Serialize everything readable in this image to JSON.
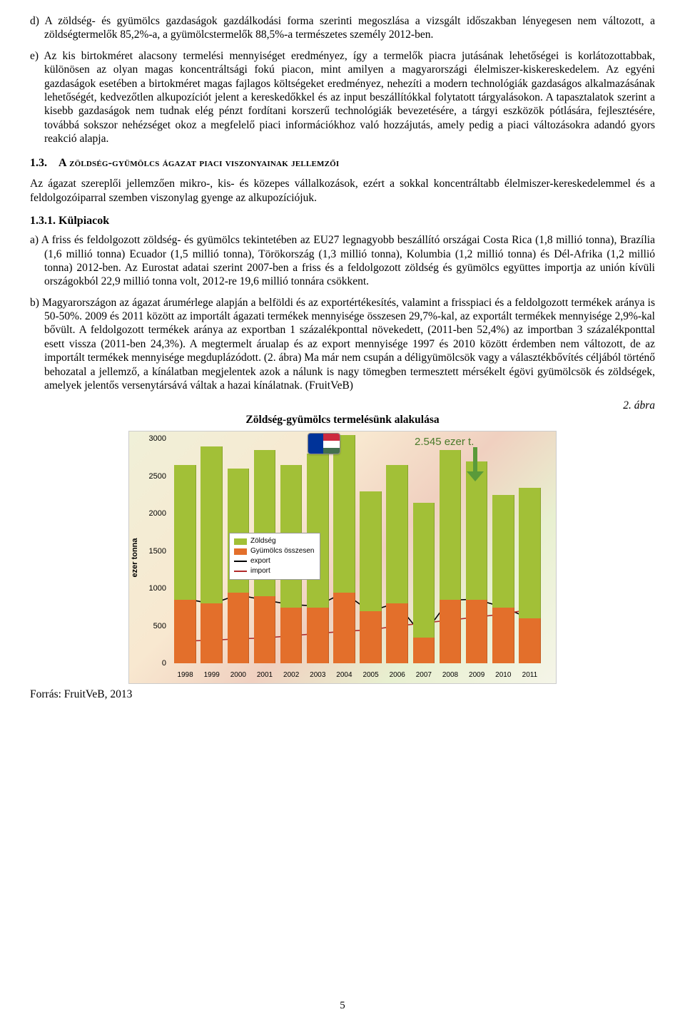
{
  "paragraphs": {
    "d": "d) A zöldség- és gyümölcs gazdaságok gazdálkodási forma szerinti megoszlása a vizsgált időszakban lényegesen nem változott, a zöldségtermelők 85,2%-a, a gyümölcstermelők 88,5%-a természetes személy 2012-ben.",
    "e": "e) Az kis birtokméret alacsony termelési mennyiséget eredményez, így a termelők piacra jutásának lehetőségei is korlátozottabbak, különösen az olyan magas koncentráltsági fokú piacon, mint amilyen a magyarországi élelmiszer-kiskereskedelem. Az egyéni gazdaságok esetében a birtokméret magas fajlagos költségeket eredményez, nehezíti a modern technológiák gazdaságos alkalmazásának lehetőségét, kedvezőtlen alkupozíciót jelent a kereskedőkkel és az input beszállítókkal folytatott tárgyalásokon. A tapasztalatok szerint a kisebb gazdaságok nem tudnak elég pénzt fordítani korszerű technológiák bevezetésére, a tárgyi eszközök pótlására, fejlesztésére, továbbá sokszor nehézséget okoz a megfelelő piaci információkhoz való hozzájutás, amely pedig a piaci változásokra adandó gyors reakció alapja.",
    "after_1_3": "Az ágazat szereplői jellemzően mikro-, kis- és közepes vállalkozások, ezért a sokkal koncentráltabb élelmiszer-kereskedelemmel és a feldolgozóiparral szemben viszonylag gyenge az alkupozíciójuk.",
    "a": "a) A friss és feldolgozott zöldség- és gyümölcs tekintetében az EU27 legnagyobb beszállító országai Costa Rica (1,8 millió tonna), Brazília (1,6 millió tonna) Ecuador (1,5 millió tonna), Törökország (1,3 millió tonna), Kolumbia (1,2 millió tonna) és Dél-Afrika (1,2 millió tonna) 2012-ben. Az Eurostat adatai szerint 2007-ben a friss és a feldolgozott zöldség és gyümölcs együttes importja az unión kívüli országokból 22,9 millió tonna volt, 2012-re 19,6 millió tonnára csökkent.",
    "b": "b) Magyarországon az ágazat árumérlege alapján a belföldi és az exportértékesítés, valamint a frisspiaci és a feldolgozott termékek aránya is 50-50%. 2009 és 2011 között az importált ágazati termékek mennyisége összesen 29,7%-kal, az exportált termékek mennyisége 2,9%-kal bővült. A feldolgozott termékek aránya az exportban 1 százalékponttal növekedett, (2011-ben 52,4%) az importban 3 százalékponttal esett vissza (2011-ben 24,3%). A megtermelt árualap és az export mennyisége 1997 és 2010 között érdemben nem változott, de az importált termékek mennyisége megduplázódott. (2. ábra) Ma már nem csupán a déligyümölcsök vagy a választékbővítés céljából történő behozatal a jellemző, a kínálatban megjelentek azok a nálunk is nagy tömegben termesztett mérsékelt égövi gyümölcsök és zöldségek, amelyek jelentős versenytársává váltak a hazai kínálatnak. (FruitVeB)"
  },
  "headings": {
    "sec_1_3_num": "1.3.",
    "sec_1_3_title": "A zöldség-gyümölcs ágazat piaci viszonyainak jellemzői",
    "sec_1_3_1": "1.3.1. Külpiacok"
  },
  "figure": {
    "label": "2. ábra",
    "title": "Zöldség-gyümölcs termelésünk alakulása",
    "annotation": "2.545 ezer t.",
    "source": "Forrás: FruitVeB, 2013"
  },
  "chart": {
    "type": "stacked-bar-with-lines",
    "y_axis_title": "ezer tonna",
    "ylim": [
      0,
      3000
    ],
    "ytick_step": 500,
    "yticks": [
      "0",
      "500",
      "1000",
      "1500",
      "2000",
      "2500",
      "3000"
    ],
    "categories": [
      "1998",
      "1999",
      "2000",
      "2001",
      "2002",
      "2003",
      "2004",
      "2005",
      "2006",
      "2007",
      "2008",
      "2009",
      "2010",
      "2011"
    ],
    "zoldseg_values": [
      1800,
      2100,
      1650,
      1950,
      1900,
      2050,
      2100,
      1600,
      1850,
      1800,
      2000,
      1850,
      1500,
      1750
    ],
    "gyumolcs_values": [
      850,
      800,
      950,
      900,
      750,
      750,
      950,
      700,
      800,
      350,
      850,
      850,
      750,
      600
    ],
    "export_values": [
      850,
      780,
      900,
      830,
      770,
      750,
      930,
      680,
      790,
      350,
      830,
      840,
      740,
      590
    ],
    "import_values": [
      280,
      290,
      310,
      320,
      350,
      380,
      410,
      430,
      480,
      520,
      560,
      600,
      640,
      700
    ],
    "colors": {
      "zoldseg": "#a2c037",
      "gyumolcs": "#e36f2b",
      "export_line": "#000000",
      "import_line": "#b02a2a",
      "background": "#f5f0dd",
      "grid": "#d0d0c0",
      "annotation_text": "#4a7a2a",
      "annotation_arrow": "#5a9a3a"
    },
    "legend": {
      "items": [
        "Zöldség",
        "Gyümölcs összesen",
        "export",
        "import"
      ]
    },
    "bar_width_ratio": 0.82,
    "font_family": "Arial, sans-serif",
    "tick_fontsize": 11,
    "legend_fontsize": 10
  },
  "page_number": "5"
}
